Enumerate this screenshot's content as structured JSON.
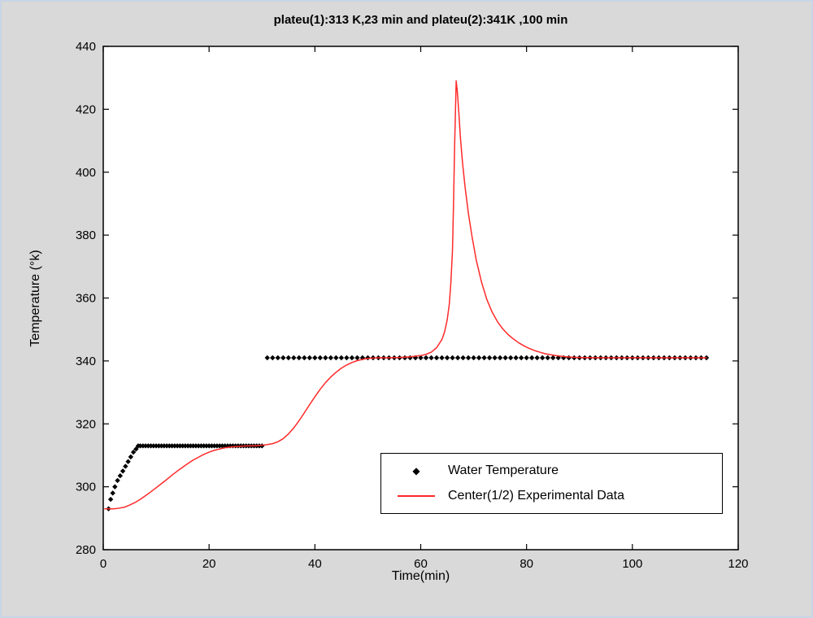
{
  "figure": {
    "background": "#d9d9d9",
    "border_color": "#c7d5e6"
  },
  "chart_data": {
    "type": "line",
    "title": "plateu(1):313 K,23 min and plateu(2):341K ,100 min",
    "xlabel": "Time(min)",
    "ylabel": "Temperature (°k)",
    "xlim": [
      0,
      120
    ],
    "ylim": [
      280,
      440
    ],
    "xticks": [
      0,
      20,
      40,
      60,
      80,
      100,
      120
    ],
    "yticks": [
      280,
      300,
      320,
      340,
      360,
      380,
      400,
      420,
      440
    ],
    "grid": false,
    "legend": {
      "position": "lower-right",
      "border": "#000000",
      "background": "#ffffff"
    },
    "series": [
      {
        "name": "Water Temperature",
        "style": "scatter",
        "marker": "diamond",
        "color": "#000000",
        "points": [
          [
            1,
            293
          ],
          [
            1.4,
            296
          ],
          [
            1.8,
            298
          ],
          [
            2.2,
            300
          ],
          [
            2.7,
            302
          ],
          [
            3.2,
            303.5
          ],
          [
            3.7,
            305
          ],
          [
            4.2,
            306.5
          ],
          [
            4.7,
            308
          ],
          [
            5.2,
            309.5
          ],
          [
            5.7,
            311
          ],
          [
            6.2,
            312
          ],
          [
            6.6,
            313
          ]
        ],
        "runs": [
          {
            "from": 7,
            "to": 30,
            "step": 0.5,
            "y": 313
          },
          {
            "from": 31,
            "to": 114,
            "step": 1,
            "y": 341
          }
        ]
      },
      {
        "name": "Center(1/2) Experimental Data",
        "style": "line",
        "color": "#ff2a2a",
        "points": [
          [
            0.3,
            293
          ],
          [
            1,
            293
          ],
          [
            2,
            293
          ],
          [
            3,
            293.2
          ],
          [
            4,
            293.5
          ],
          [
            5,
            294.2
          ],
          [
            6,
            295
          ],
          [
            7,
            296
          ],
          [
            8,
            297.2
          ],
          [
            9,
            298.4
          ],
          [
            10,
            299.7
          ],
          [
            11,
            301
          ],
          [
            12,
            302.3
          ],
          [
            13,
            303.7
          ],
          [
            14,
            305
          ],
          [
            15,
            306.2
          ],
          [
            16,
            307.4
          ],
          [
            17,
            308.5
          ],
          [
            18,
            309.4
          ],
          [
            19,
            310.3
          ],
          [
            20,
            311
          ],
          [
            21,
            311.6
          ],
          [
            22,
            312
          ],
          [
            23,
            312.4
          ],
          [
            24,
            312.6
          ],
          [
            25,
            312.8
          ],
          [
            26,
            312.9
          ],
          [
            27,
            313
          ],
          [
            28,
            313
          ],
          [
            29,
            313.1
          ],
          [
            30,
            313.2
          ],
          [
            31,
            313.4
          ],
          [
            32,
            313.7
          ],
          [
            33,
            314.3
          ],
          [
            34,
            315.3
          ],
          [
            35,
            316.8
          ],
          [
            36,
            318.7
          ],
          [
            37,
            321
          ],
          [
            38,
            323.5
          ],
          [
            39,
            326.1
          ],
          [
            40,
            328.6
          ],
          [
            41,
            331
          ],
          [
            42,
            333.1
          ],
          [
            43,
            334.9
          ],
          [
            44,
            336.4
          ],
          [
            45,
            337.7
          ],
          [
            46,
            338.7
          ],
          [
            47,
            339.5
          ],
          [
            48,
            340.1
          ],
          [
            49,
            340.5
          ],
          [
            50,
            340.8
          ],
          [
            52,
            341
          ],
          [
            54,
            341
          ],
          [
            56,
            341.1
          ],
          [
            58,
            341.3
          ],
          [
            60,
            341.7
          ],
          [
            61,
            342.1
          ],
          [
            62,
            342.8
          ],
          [
            63,
            344.2
          ],
          [
            64,
            346.8
          ],
          [
            64.5,
            349.2
          ],
          [
            65,
            353
          ],
          [
            65.4,
            358
          ],
          [
            65.7,
            365
          ],
          [
            66,
            375
          ],
          [
            66.2,
            390
          ],
          [
            66.4,
            408
          ],
          [
            66.6,
            422
          ],
          [
            66.7,
            429
          ],
          [
            66.9,
            426
          ],
          [
            67.2,
            419
          ],
          [
            67.5,
            411
          ],
          [
            67.9,
            403
          ],
          [
            68.4,
            395
          ],
          [
            69,
            387
          ],
          [
            69.7,
            379.5
          ],
          [
            70.5,
            372
          ],
          [
            71.5,
            365
          ],
          [
            72.5,
            359.5
          ],
          [
            73.5,
            355.5
          ],
          [
            74.5,
            352.5
          ],
          [
            75.5,
            350.2
          ],
          [
            76.5,
            348.4
          ],
          [
            77.5,
            347
          ],
          [
            78.5,
            345.8
          ],
          [
            79.5,
            344.8
          ],
          [
            80.5,
            344
          ],
          [
            81.5,
            343.3
          ],
          [
            82.5,
            342.8
          ],
          [
            83.5,
            342.3
          ],
          [
            84.5,
            342
          ],
          [
            85.5,
            341.7
          ],
          [
            87,
            341.4
          ],
          [
            88.5,
            341.2
          ],
          [
            90,
            341.1
          ],
          [
            93,
            341
          ],
          [
            96,
            341
          ],
          [
            100,
            341
          ],
          [
            105,
            341
          ],
          [
            110,
            341
          ],
          [
            114,
            341
          ]
        ]
      }
    ]
  }
}
